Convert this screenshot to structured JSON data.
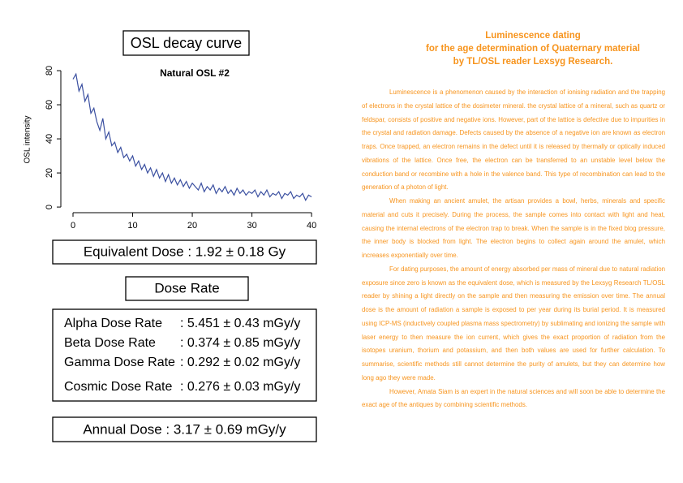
{
  "chart_data": {
    "type": "line",
    "title": "Natural OSL #2",
    "ylabel": "OSL intensity",
    "color": "#3a4fa0",
    "x": [
      0,
      0.5,
      1,
      1.5,
      2,
      2.5,
      3,
      3.5,
      4,
      4.5,
      5,
      5.5,
      6,
      6.5,
      7,
      7.5,
      8,
      8.5,
      9,
      9.5,
      10,
      10.5,
      11,
      11.5,
      12,
      12.5,
      13,
      13.5,
      14,
      14.5,
      15,
      15.5,
      16,
      16.5,
      17,
      17.5,
      18,
      18.5,
      19,
      19.5,
      20,
      20.5,
      21,
      21.5,
      22,
      22.5,
      23,
      23.5,
      24,
      24.5,
      25,
      25.5,
      26,
      26.5,
      27,
      27.5,
      28,
      28.5,
      29,
      29.5,
      30,
      30.5,
      31,
      31.5,
      32,
      32.5,
      33,
      33.5,
      34,
      34.5,
      35,
      35.5,
      36,
      36.5,
      37,
      37.5,
      38,
      38.5,
      39,
      39.5,
      40
    ],
    "values": [
      75,
      78,
      68,
      72,
      62,
      66,
      55,
      58,
      50,
      45,
      52,
      40,
      44,
      36,
      38,
      32,
      35,
      29,
      31,
      27,
      30,
      24,
      27,
      22,
      25,
      20,
      23,
      18,
      22,
      17,
      20,
      15,
      19,
      14,
      17,
      13,
      16,
      12,
      15,
      11,
      14,
      12,
      10,
      14,
      9,
      12,
      10,
      13,
      8,
      11,
      9,
      12,
      8,
      10,
      7,
      11,
      8,
      10,
      7,
      9,
      8,
      10,
      6,
      9,
      7,
      10,
      6,
      8,
      7,
      9,
      5,
      8,
      7,
      9,
      5,
      7,
      6,
      8,
      4,
      7,
      6
    ],
    "xlim": [
      -2.04,
      40.8
    ],
    "ylim": [
      -3.3,
      82.4
    ],
    "xticks": [
      0,
      10,
      20,
      30,
      40
    ],
    "yticks": [
      0,
      20,
      40,
      60,
      80
    ]
  },
  "panel": {
    "osl_title": "OSL decay curve",
    "equivalent_dose": "Equivalent Dose : 1.92 ± 0.18 Gy",
    "dose_rate_title": "Dose Rate",
    "dose_rates": [
      {
        "label": "Alpha Dose Rate",
        "value": ": 5.451 ± 0.43 mGy/y"
      },
      {
        "label": "Beta Dose Rate",
        "value": ": 0.374 ± 0.85 mGy/y"
      },
      {
        "label": "Gamma Dose Rate",
        "value": ": 0.292 ± 0.02 mGy/y"
      },
      {
        "label": "Cosmic Dose Rate",
        "value": ": 0.276 ± 0.03 mGy/y"
      }
    ],
    "annual_dose": "Annual Dose : 3.17 ± 0.69 mGy/y"
  },
  "article": {
    "title": [
      "Luminescence dating",
      "for the age determination of Quaternary material",
      "by TL/OSL reader Lexsyg Research."
    ],
    "paragraphs": [
      "Luminescence is a phenomenon caused by the interaction of ionising radiation and the trapping of electrons in the crystal lattice of the dosimeter mineral. the crystal lattice of a mineral, such as quartz or feldspar, consists of positive and negative ions. However, part of the lattice is defective due to impurities in the crystal and radiation damage. Defects caused by the absence of a negative ion are known as electron traps. Once trapped, an electron remains in the defect until it is released by thermally or optically induced vibrations of the lattice. Once free, the electron can be transferred to an unstable level below the conduction band or recombine with a hole in the valence band. This type of recombination can lead to the generation of a photon of light.",
      "When making an ancient amulet, the artisan provides a bowl, herbs, minerals and specific material and cuts it precisely. During the process, the sample comes into contact with light and heat, causing the internal electrons of the electron trap to break. When the sample is in the fixed blog pressure, the inner body is blocked from light. The electron begins to collect again around the amulet, which increases exponentially over time.",
      "For dating purposes, the amount of energy absorbed per mass of mineral due to natural radiation exposure since zero is known as the equivalent dose, which is measured by the Lexsyg Research TL/OSL reader by shining a light directly on the sample and then measuring the emission over time. The annual dose is the amount of radiation a sample is exposed to per year during its burial period. It is measured using ICP-MS (inductively coupled plasma mass spectrometry) by sublimating and ionizing the sample with laser energy to then measure the ion current, which gives the exact proportion of radiation from the isotopes uranium, thorium and potassium, and then both values are used for further calculation. To summarise, scientific methods still cannot determine the purity of amulets, but they can determine how long ago they were made.",
      "However, Amata Siam is an expert in the natural sciences and will soon be able to determine the exact age of the antiques by combining scientific methods."
    ]
  }
}
